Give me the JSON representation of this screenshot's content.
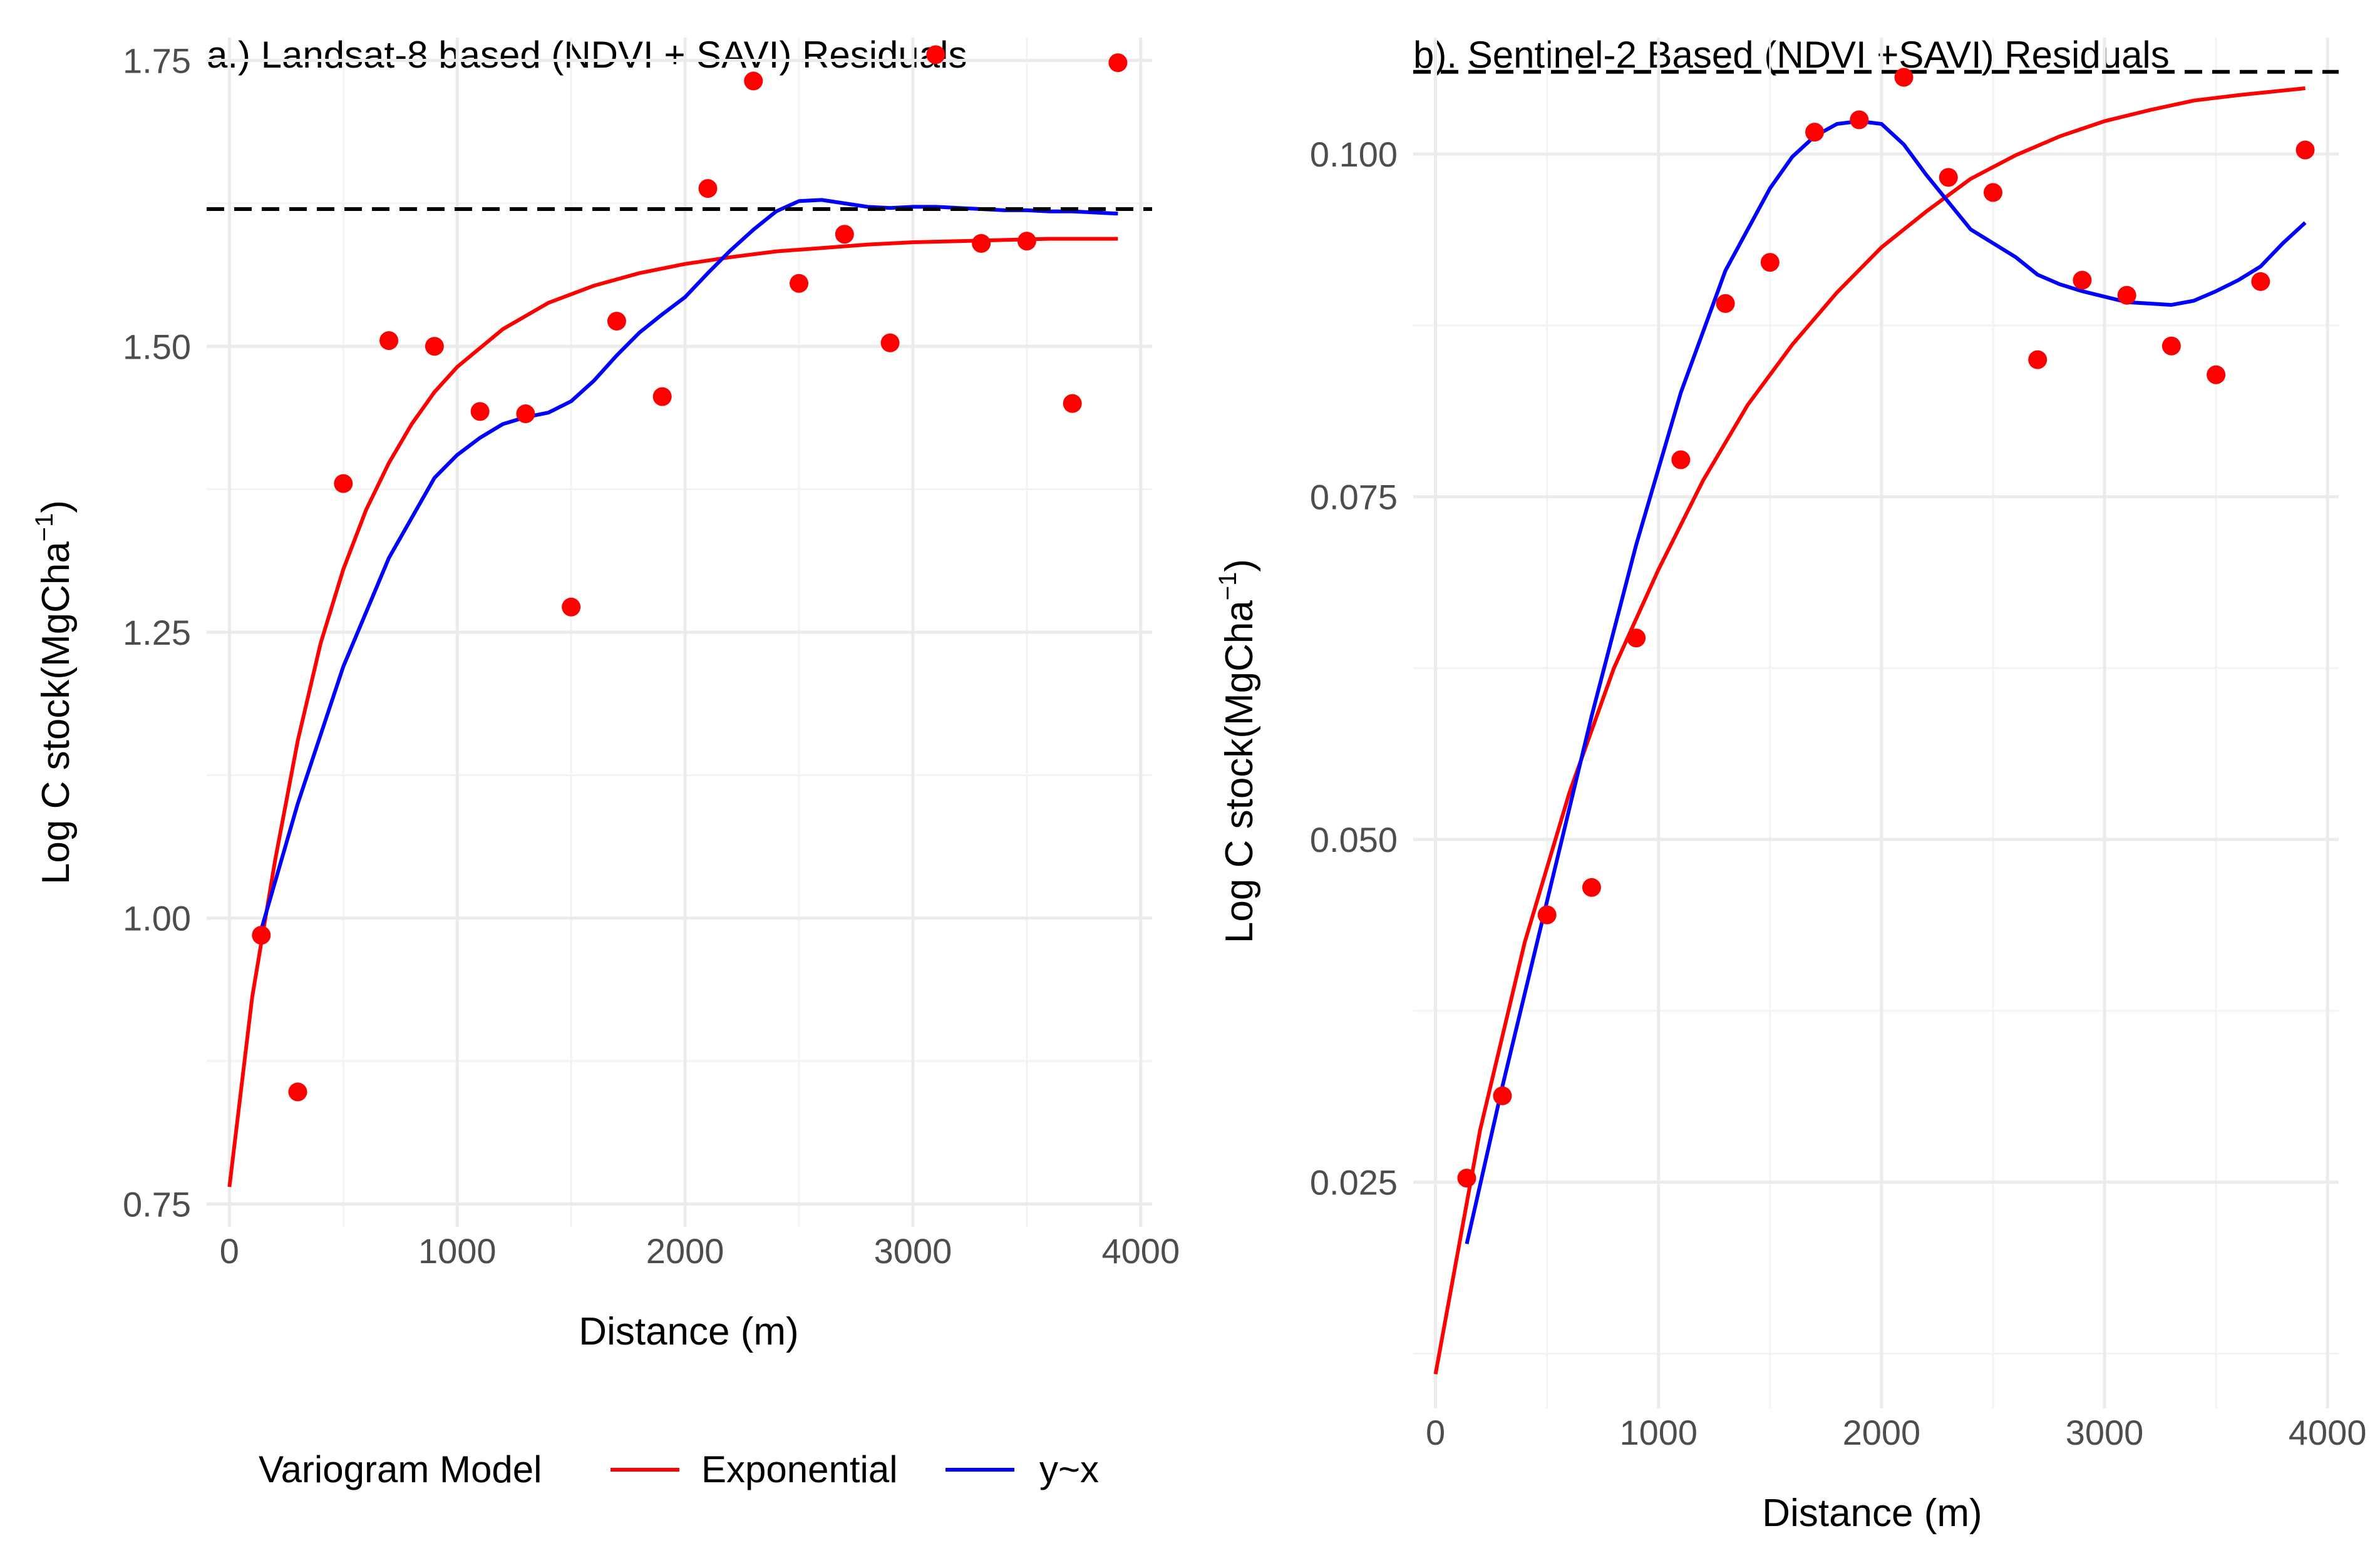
{
  "chart_data": [
    {
      "type": "scatter",
      "panel": "a",
      "title": "a.) Landsat-8 based (NDVI + SAVI) Residuals",
      "xlabel": "Distance (m)",
      "ylabel_text": "Log C stock(MgCha",
      "ylabel_sup": "−1",
      "ylabel_close": ")",
      "xlim": [
        -100,
        4050
      ],
      "ylim": [
        0.73,
        1.77
      ],
      "xticks": [
        0,
        1000,
        2000,
        3000,
        4000
      ],
      "xtick_labels": [
        "0",
        "1000",
        "2000",
        "3000",
        "4000"
      ],
      "yticks": [
        0.75,
        1.0,
        1.25,
        1.5,
        1.75
      ],
      "ytick_labels": [
        "0.75",
        "1.00",
        "1.25",
        "1.50",
        "1.75"
      ],
      "grid": true,
      "sill": 1.62,
      "points": {
        "x": [
          140,
          300,
          500,
          700,
          900,
          1100,
          1300,
          1500,
          1700,
          1900,
          2100,
          2300,
          2500,
          2700,
          2900,
          3100,
          3300,
          3500,
          3700,
          3900
        ],
        "y": [
          0.985,
          0.848,
          1.38,
          1.505,
          1.5,
          1.443,
          1.441,
          1.272,
          1.522,
          1.456,
          1.638,
          1.732,
          1.555,
          1.598,
          1.503,
          1.755,
          1.59,
          1.592,
          1.45,
          1.748
        ]
      },
      "series": [
        {
          "name": "Exponential",
          "color": "#ff0000",
          "x": [
            0,
            100,
            200,
            300,
            400,
            500,
            600,
            700,
            800,
            900,
            1000,
            1200,
            1400,
            1600,
            1800,
            2000,
            2200,
            2400,
            2600,
            2800,
            3000,
            3200,
            3400,
            3600,
            3900
          ],
          "y": [
            0.765,
            0.931,
            1.05,
            1.155,
            1.24,
            1.305,
            1.357,
            1.398,
            1.432,
            1.46,
            1.482,
            1.515,
            1.538,
            1.553,
            1.564,
            1.572,
            1.578,
            1.583,
            1.586,
            1.589,
            1.591,
            1.592,
            1.593,
            1.594,
            1.594
          ]
        },
        {
          "name": "y~x",
          "color": "#0000ff",
          "x": [
            140,
            300,
            500,
            700,
            900,
            1000,
            1100,
            1200,
            1300,
            1400,
            1500,
            1600,
            1700,
            1800,
            1900,
            2000,
            2100,
            2200,
            2300,
            2400,
            2500,
            2600,
            2700,
            2800,
            2900,
            3000,
            3100,
            3200,
            3300,
            3400,
            3500,
            3600,
            3700,
            3800,
            3900
          ],
          "y": [
            0.99,
            1.1,
            1.22,
            1.315,
            1.385,
            1.405,
            1.42,
            1.432,
            1.438,
            1.442,
            1.452,
            1.47,
            1.492,
            1.512,
            1.528,
            1.543,
            1.564,
            1.584,
            1.602,
            1.618,
            1.627,
            1.628,
            1.625,
            1.622,
            1.621,
            1.622,
            1.622,
            1.621,
            1.62,
            1.619,
            1.619,
            1.618,
            1.618,
            1.617,
            1.616
          ]
        }
      ]
    },
    {
      "type": "scatter",
      "panel": "b",
      "title": "b). Sentinel-2 Based (NDVI +SAVI) Residuals",
      "xlabel": "Distance (m)",
      "ylabel_text": "Log C stock(MgCha",
      "ylabel_sup": "−1",
      "ylabel_close": ")",
      "xlim": [
        -100,
        4050
      ],
      "ylim": [
        0.0085,
        0.1085
      ],
      "xticks": [
        0,
        1000,
        2000,
        3000,
        4000
      ],
      "xtick_labels": [
        "0",
        "1000",
        "2000",
        "3000",
        "4000"
      ],
      "yticks": [
        0.025,
        0.05,
        0.075,
        0.1
      ],
      "ytick_labels": [
        "0.025",
        "0.050",
        "0.075",
        "0.100"
      ],
      "grid": true,
      "sill": 0.106,
      "points": {
        "x": [
          140,
          300,
          500,
          700,
          900,
          1100,
          1300,
          1500,
          1700,
          1900,
          2100,
          2300,
          2500,
          2700,
          2900,
          3100,
          3300,
          3500,
          3700,
          3900
        ],
        "y": [
          0.0253,
          0.0313,
          0.0445,
          0.0465,
          0.0647,
          0.0777,
          0.0891,
          0.0921,
          0.1016,
          0.1025,
          0.1056,
          0.0983,
          0.0972,
          0.085,
          0.0908,
          0.0897,
          0.086,
          0.0839,
          0.0907,
          0.1003
        ]
      },
      "series": [
        {
          "name": "Exponential",
          "color": "#ff0000",
          "x": [
            0,
            200,
            400,
            600,
            800,
            1000,
            1200,
            1400,
            1600,
            1800,
            2000,
            2200,
            2400,
            2600,
            2800,
            3000,
            3200,
            3400,
            3600,
            3900
          ],
          "y": [
            0.011,
            0.0288,
            0.0425,
            0.0534,
            0.0625,
            0.0697,
            0.0762,
            0.0817,
            0.0861,
            0.0899,
            0.0932,
            0.0958,
            0.0982,
            0.0999,
            0.1013,
            0.1024,
            0.1032,
            0.1039,
            0.1043,
            0.1048
          ]
        },
        {
          "name": "y~x",
          "color": "#0000ff",
          "x": [
            140,
            300,
            500,
            700,
            900,
            1100,
            1300,
            1500,
            1600,
            1700,
            1800,
            1900,
            2000,
            2100,
            2200,
            2300,
            2400,
            2500,
            2600,
            2700,
            2800,
            2900,
            3000,
            3100,
            3200,
            3300,
            3400,
            3500,
            3600,
            3700,
            3800,
            3900
          ],
          "y": [
            0.0205,
            0.032,
            0.0455,
            0.059,
            0.0715,
            0.0826,
            0.0915,
            0.0975,
            0.0998,
            0.1013,
            0.1022,
            0.1024,
            0.1022,
            0.1007,
            0.0985,
            0.0965,
            0.0945,
            0.0935,
            0.0925,
            0.0912,
            0.0905,
            0.09,
            0.0896,
            0.0892,
            0.0891,
            0.089,
            0.0893,
            0.09,
            0.0908,
            0.0918,
            0.0935,
            0.095
          ]
        }
      ]
    }
  ],
  "legend": {
    "title": "Variogram Model",
    "items": [
      {
        "label": "Exponential",
        "color": "#ff0000"
      },
      {
        "label": "y~x",
        "color": "#0000ff"
      }
    ]
  }
}
